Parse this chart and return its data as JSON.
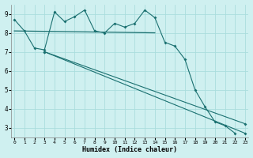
{
  "xlabel": "Humidex (Indice chaleur)",
  "bg_color": "#cff0f0",
  "line_color": "#1a7070",
  "grid_color": "#aadddd",
  "x": [
    0,
    1,
    2,
    3,
    4,
    5,
    6,
    7,
    8,
    9,
    10,
    11,
    12,
    13,
    14,
    15,
    16,
    17,
    18,
    19,
    20,
    21,
    22,
    23
  ],
  "series1_y": [
    8.7,
    8.1,
    7.2,
    7.1,
    9.1,
    8.6,
    8.85,
    9.2,
    8.1,
    8.0,
    8.5,
    8.3,
    8.5,
    9.2,
    8.8,
    7.5,
    7.3,
    6.6,
    5.0,
    4.1,
    3.3,
    3.1,
    2.7,
    null
  ],
  "series2_x": [
    3,
    23
  ],
  "series2_y": [
    7.0,
    2.7
  ],
  "series3_x": [
    3,
    23
  ],
  "series3_y": [
    7.0,
    3.2
  ],
  "series4_x": [
    0,
    14
  ],
  "series4_y": [
    8.1,
    8.0
  ],
  "ylim": [
    2.5,
    9.5
  ],
  "xlim": [
    -0.3,
    23.3
  ],
  "yticks": [
    3,
    4,
    5,
    6,
    7,
    8,
    9
  ],
  "xticks": [
    0,
    1,
    2,
    3,
    4,
    5,
    6,
    7,
    8,
    9,
    10,
    11,
    12,
    13,
    14,
    15,
    16,
    17,
    18,
    19,
    20,
    21,
    22,
    23
  ]
}
